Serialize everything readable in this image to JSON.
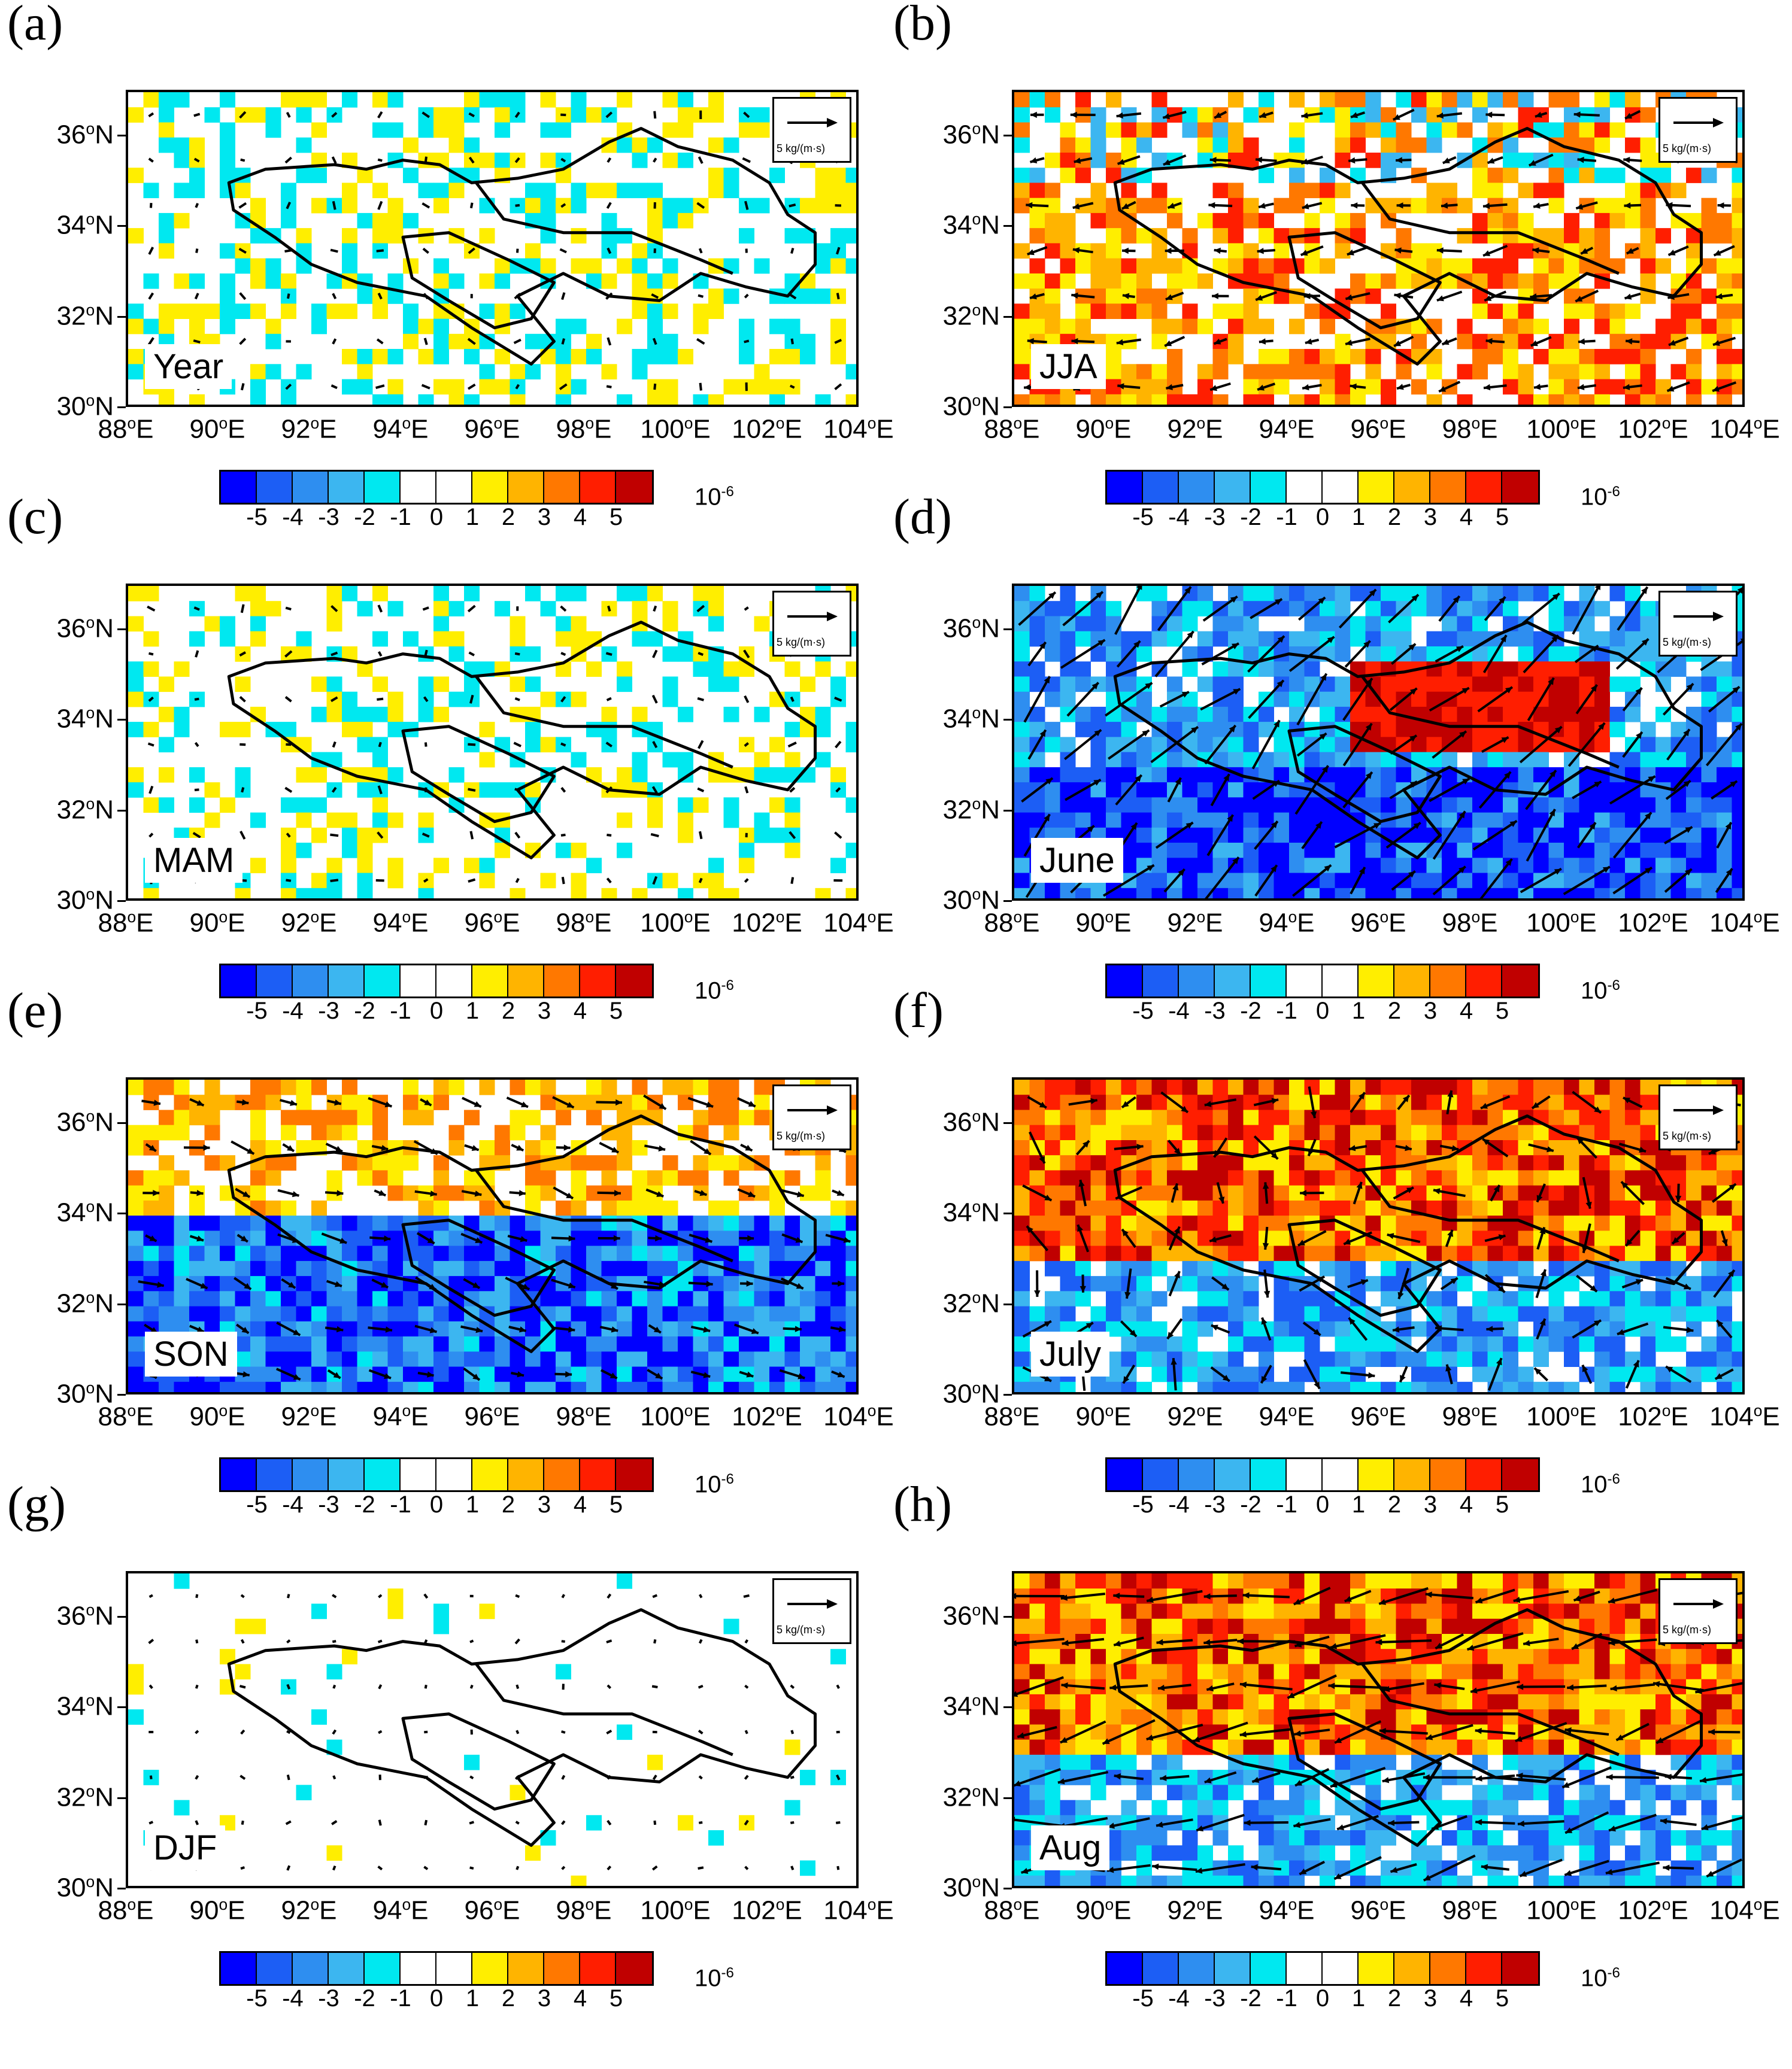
{
  "chart_data": {
    "type": "heatmap",
    "title": "",
    "colorbar": {
      "levels": [
        "-5",
        "-4",
        "-3",
        "-2",
        "-1",
        "0",
        "1",
        "2",
        "3",
        "4",
        "5"
      ],
      "colors": [
        "#0000ff",
        "#1c5ef5",
        "#2e8ef0",
        "#3cb6f0",
        "#00e8f0",
        "#ffffff",
        "#ffffff",
        "#ffee00",
        "#ffb400",
        "#ff7800",
        "#ff1e00",
        "#c00000"
      ],
      "units_base": "10",
      "units_exp": "-6"
    },
    "axes": {
      "x_ticks": [
        "88",
        "90",
        "92",
        "94",
        "96",
        "98",
        "100",
        "102",
        "104"
      ],
      "x_suffix": "E",
      "y_ticks": [
        "30",
        "32",
        "34",
        "36"
      ],
      "y_suffix": "N",
      "degree": "o",
      "xlim": [
        88,
        104
      ],
      "ylim": [
        30,
        37
      ]
    },
    "reference_vector": "5 kg/(m·s)",
    "panels": [
      {
        "letter": "(a)",
        "season": "Year",
        "anomaly_sign": "mixed",
        "vector_strength": 0.15
      },
      {
        "letter": "(b)",
        "season": "JJA",
        "anomaly_sign": "positive",
        "vector_strength": 0.45
      },
      {
        "letter": "(c)",
        "season": "MAM",
        "anomaly_sign": "mixed",
        "vector_strength": 0.15
      },
      {
        "letter": "(d)",
        "season": "June",
        "anomaly_sign": "negative",
        "vector_strength": 1.0
      },
      {
        "letter": "(e)",
        "season": "SON",
        "anomaly_sign": "negative",
        "vector_strength": 0.45
      },
      {
        "letter": "(f)",
        "season": "July",
        "anomaly_sign": "positive",
        "vector_strength": 0.6
      },
      {
        "letter": "(g)",
        "season": "DJF",
        "anomaly_sign": "mixed",
        "vector_strength": 0.1
      },
      {
        "letter": "(h)",
        "season": "Aug",
        "anomaly_sign": "positive",
        "vector_strength": 1.0
      }
    ]
  }
}
